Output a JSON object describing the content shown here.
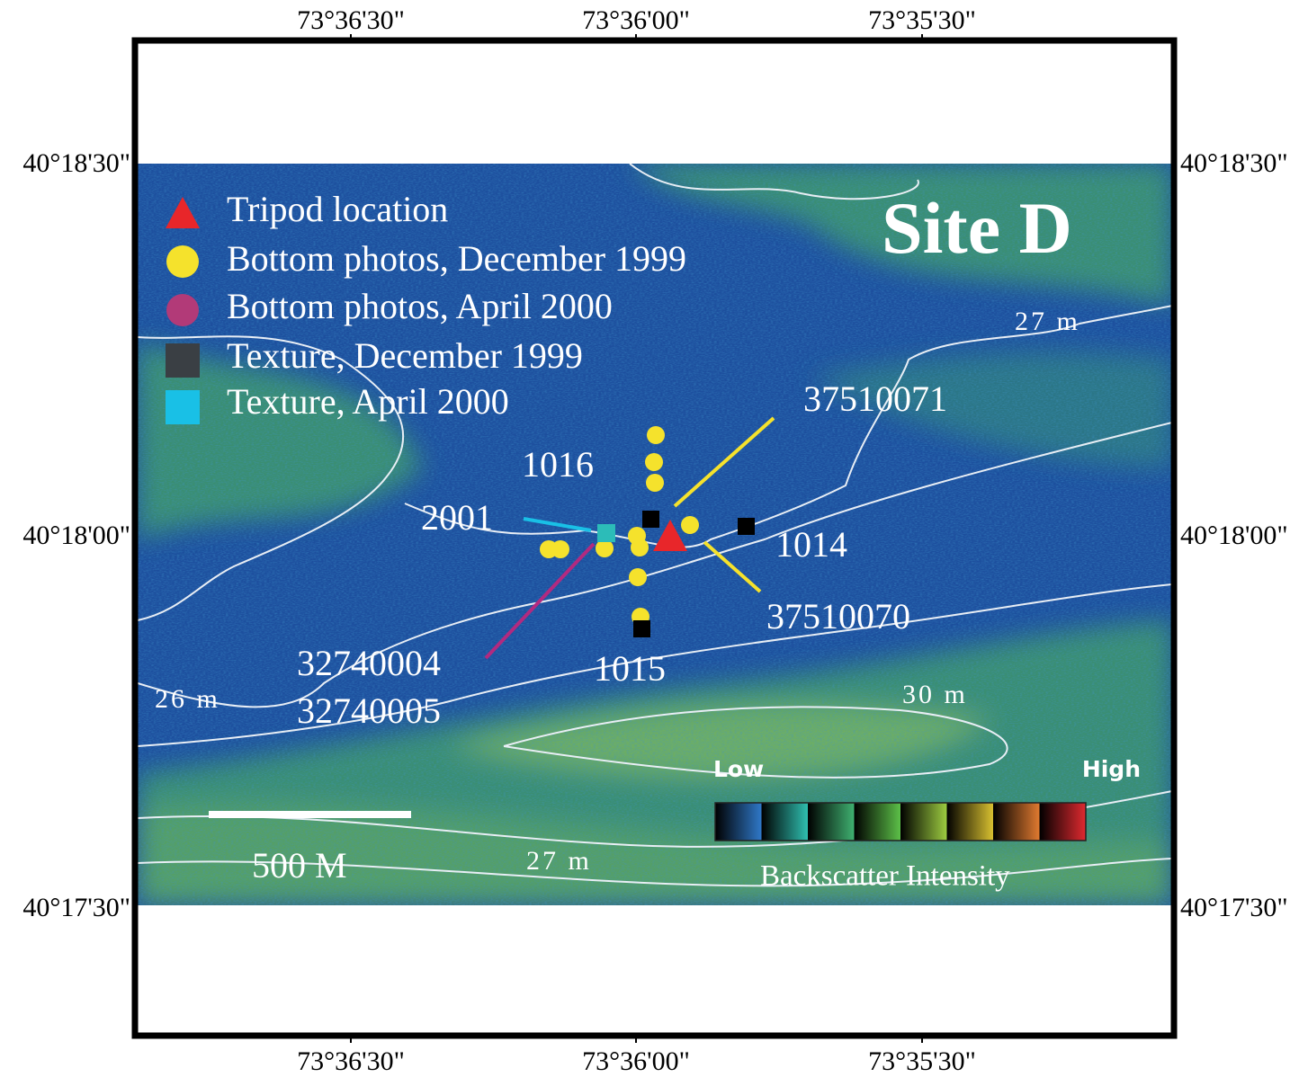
{
  "map": {
    "title": "Site D",
    "x_ticks": [
      "73°36'30\"",
      "73°36'00\"",
      "73°35'30\""
    ],
    "y_ticks": [
      "40°18'30\"",
      "40°18'00\"",
      "40°17'30\""
    ],
    "legend": [
      "Tripod location",
      "Bottom photos, December 1999",
      "Bottom photos, April 2000",
      "Texture, December  1999",
      "Texture, April  2000"
    ],
    "labels": [
      "37510071",
      "1016",
      "2001",
      "1014",
      "37510070",
      "32740004",
      "32740005",
      "1015"
    ],
    "contour_labels": [
      "27 m",
      "26 m",
      "30 m",
      "27 m"
    ],
    "scale_bar": "500 M",
    "colorbar": {
      "low": "Low",
      "high": "High",
      "title": "Backscatter Intensity"
    }
  }
}
